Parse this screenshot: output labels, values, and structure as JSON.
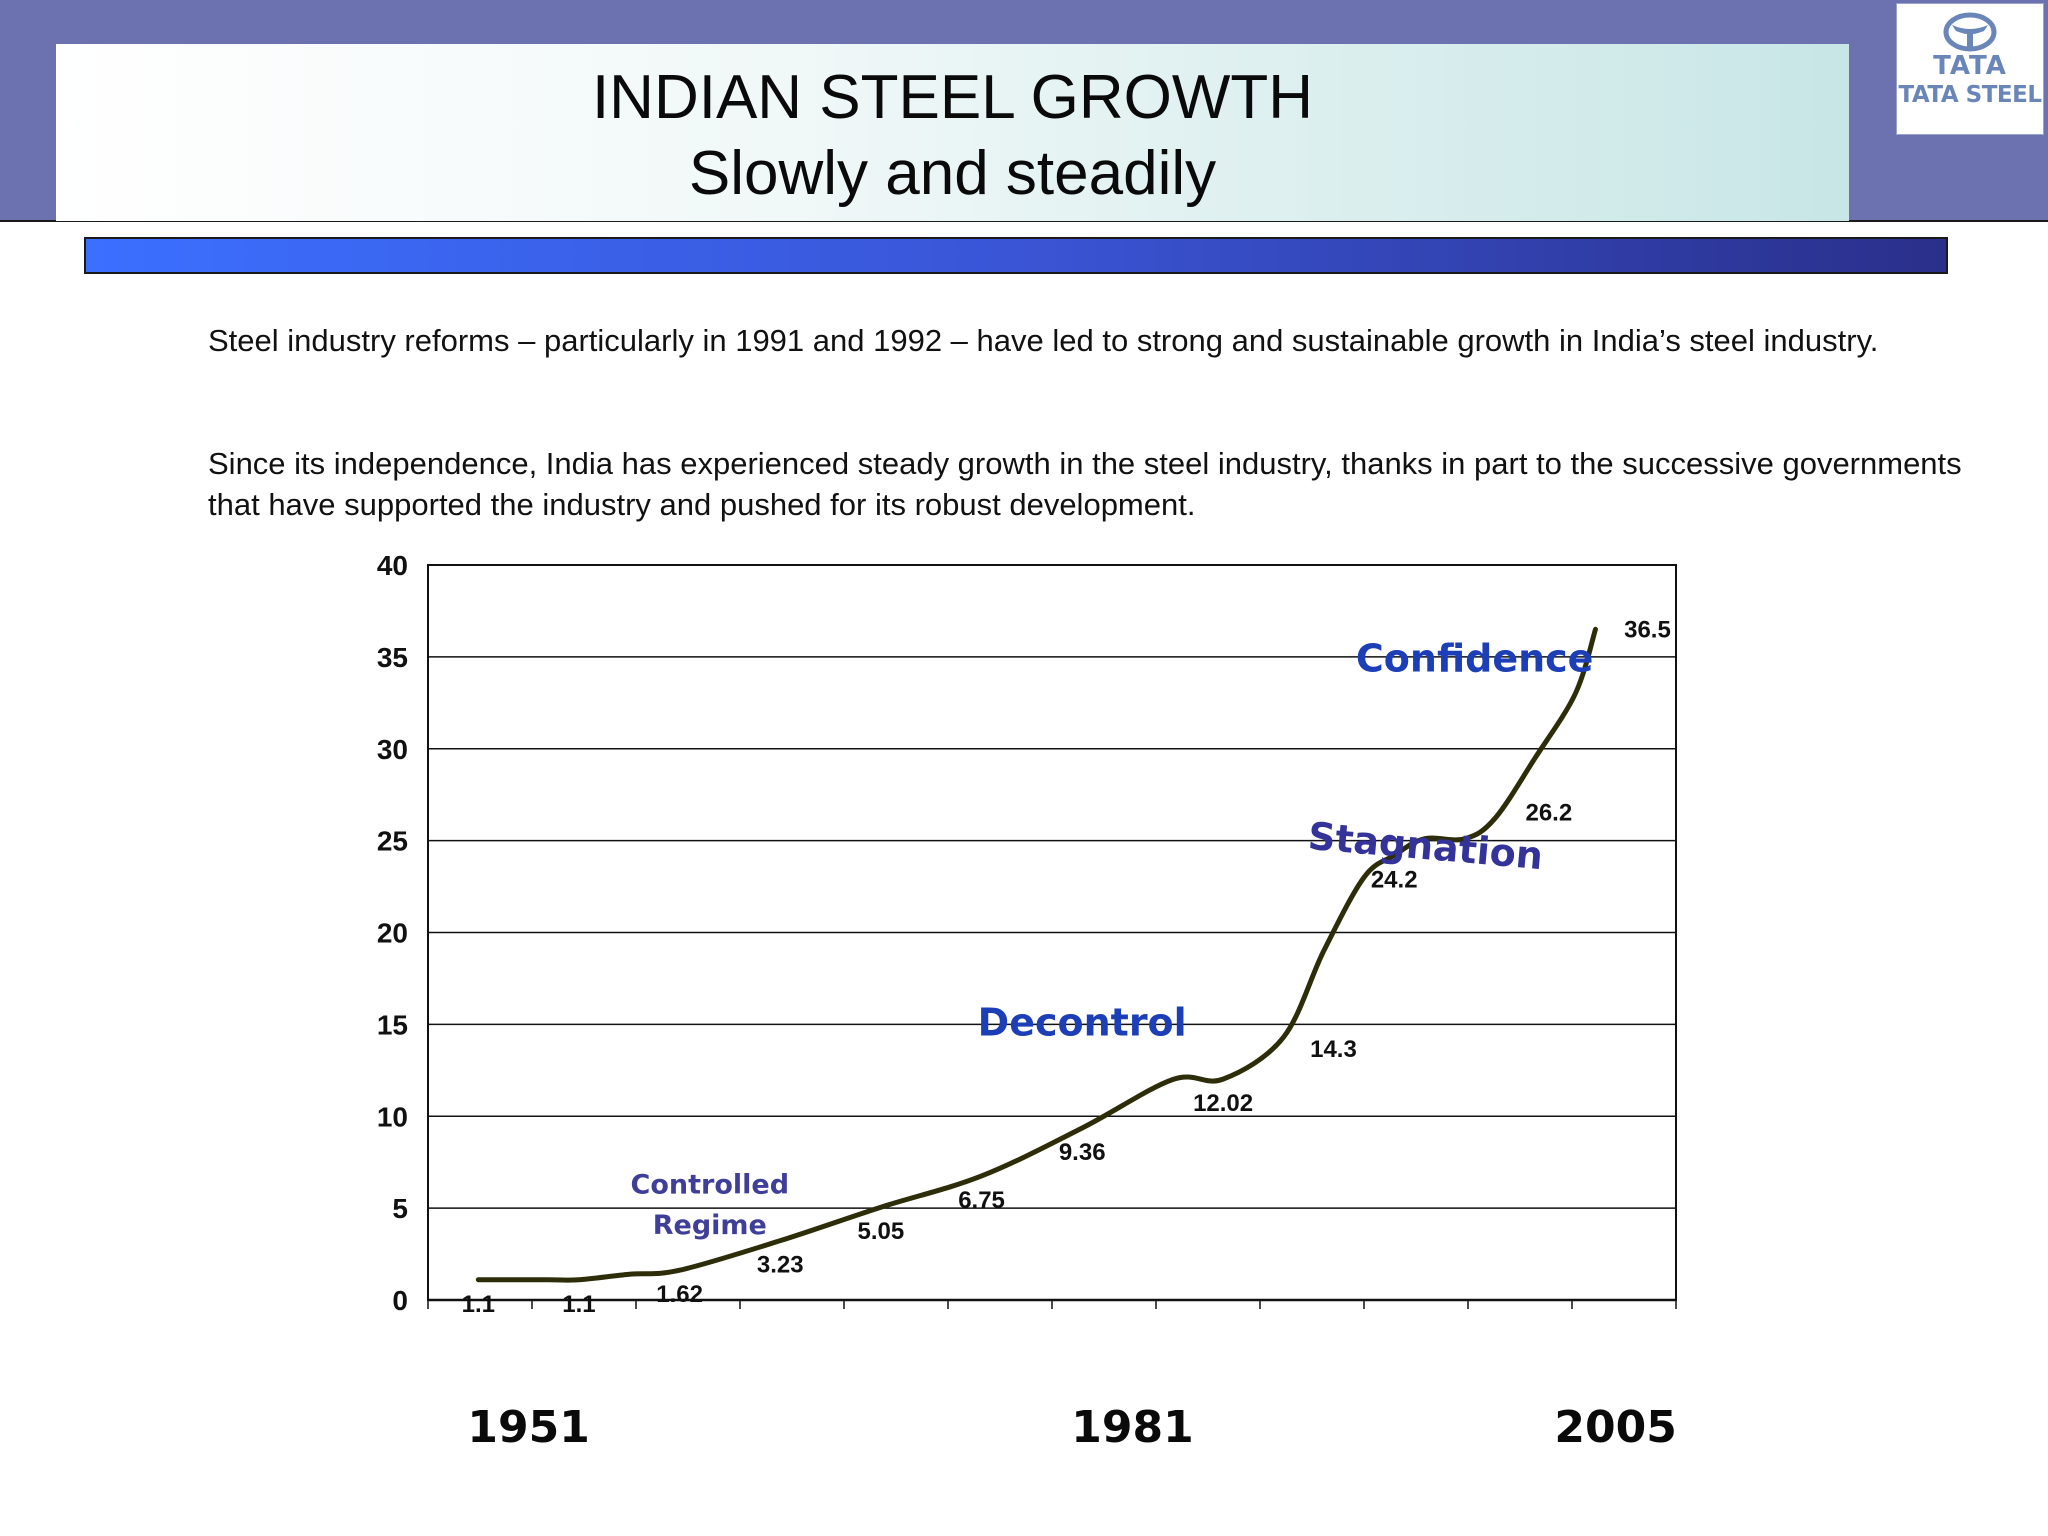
{
  "header": {
    "title": "INDIAN STEEL GROWTH",
    "subtitle": "Slowly and steadily",
    "logo_line1": "TATA",
    "logo_line2": "TATA STEEL"
  },
  "body": {
    "paragraph1": "Steel industry reforms – particularly in 1991 and 1992 – have led to strong and sustainable growth in India’s steel industry.",
    "paragraph2": "Since its independence, India has experienced steady growth in the steel industry, thanks in part to the successive governments that have supported the industry and pushed for its robust development."
  },
  "chart_data": {
    "type": "line",
    "ylim": [
      0,
      40
    ],
    "yticks": [
      0,
      5,
      10,
      15,
      20,
      25,
      30,
      35,
      40
    ],
    "x_labels": [
      {
        "label": "1951",
        "x": 1951
      },
      {
        "label": "1981",
        "x": 1981
      },
      {
        "label": "2005",
        "x": 2005
      }
    ],
    "grid": true,
    "series": [
      {
        "color": "#2d2d0a",
        "points": [
          {
            "x": 1948.5,
            "y": 1.1,
            "label": "1.1"
          },
          {
            "x": 1952.0,
            "y": 1.1
          },
          {
            "x": 1953.5,
            "y": 1.1,
            "label": "1.1"
          },
          {
            "x": 1956.0,
            "y": 1.4
          },
          {
            "x": 1958.5,
            "y": 1.62,
            "label": "1.62"
          },
          {
            "x": 1963.5,
            "y": 3.23,
            "label": "3.23"
          },
          {
            "x": 1968.5,
            "y": 5.05,
            "label": "5.05"
          },
          {
            "x": 1973.5,
            "y": 6.75,
            "label": "6.75"
          },
          {
            "x": 1978.5,
            "y": 9.36,
            "label": "9.36"
          },
          {
            "x": 1983.0,
            "y": 12.0
          },
          {
            "x": 1985.5,
            "y": 12.02,
            "label": "12.02"
          },
          {
            "x": 1988.5,
            "y": 14.3,
            "label": "14.3"
          },
          {
            "x": 1990.5,
            "y": 19.0
          },
          {
            "x": 1992.5,
            "y": 23.0
          },
          {
            "x": 1994.0,
            "y": 24.2,
            "label": "24.2"
          },
          {
            "x": 1995.5,
            "y": 25.1
          },
          {
            "x": 1997.5,
            "y": 25.1
          },
          {
            "x": 1999.0,
            "y": 26.2,
            "label": "26.2"
          },
          {
            "x": 2001.0,
            "y": 29.5
          },
          {
            "x": 2003.0,
            "y": 33.0
          },
          {
            "x": 2004.0,
            "y": 36.5,
            "label": "36.5"
          }
        ]
      }
    ],
    "annotations": [
      {
        "text": "Controlled",
        "x": 1960.0,
        "y": 5.8,
        "color": "#3f3f9a",
        "size": "small"
      },
      {
        "text": "Regime",
        "x": 1960.0,
        "y": 3.6,
        "color": "#3f3f9a",
        "size": "small"
      },
      {
        "text": "Decontrol",
        "x": 1978.5,
        "y": 14.4,
        "color": "#1c3fb8",
        "size": "large"
      },
      {
        "text": "Stagnation",
        "x": 1995.5,
        "y": 24.0,
        "color": "#333399",
        "size": "large",
        "rotate": 5
      },
      {
        "text": "Confidence",
        "x": 1998.0,
        "y": 34.2,
        "color": "#1c3fb8",
        "size": "large"
      }
    ]
  }
}
